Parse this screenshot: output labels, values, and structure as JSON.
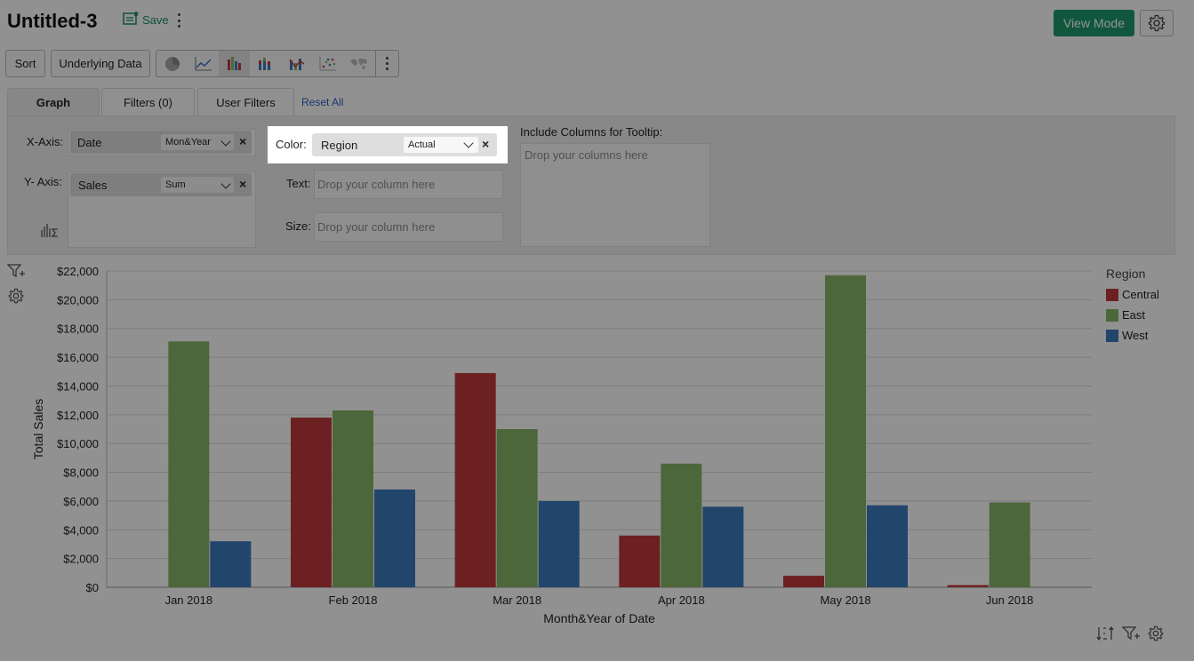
{
  "header": {
    "title": "Untitled-3",
    "save_label": "Save",
    "view_mode_label": "View Mode"
  },
  "toolbar": {
    "sort_label": "Sort",
    "underlying_data_label": "Underlying Data",
    "chart_types": [
      "pie-chart-icon",
      "line-chart-icon",
      "bar-chart-icon",
      "stacked-bar-chart-icon",
      "bar-line-combo-icon",
      "scatter-chart-icon",
      "map-chart-icon"
    ],
    "selected_chart_type": "bar-chart-icon"
  },
  "tabs": [
    {
      "label": "Graph",
      "active": true
    },
    {
      "label": "Filters (0)",
      "active": false
    },
    {
      "label": "User Filters",
      "active": false
    }
  ],
  "reset_all_label": "Reset All",
  "config": {
    "x_axis": {
      "label": "X-Axis:",
      "column": "Date",
      "aggregation": "Mon&Year"
    },
    "y_axis": {
      "label": "Y- Axis:",
      "column": "Sales",
      "aggregation": "Sum"
    },
    "color": {
      "label": "Color:",
      "column": "Region",
      "aggregation": "Actual"
    },
    "text": {
      "label": "Text:",
      "placeholder": "Drop your column here"
    },
    "size": {
      "label": "Size:",
      "placeholder": "Drop your column here"
    },
    "tooltip": {
      "label": "Include Columns for Tooltip:",
      "placeholder": "Drop your columns here"
    }
  },
  "chart_data": {
    "type": "bar",
    "categories": [
      "Jan 2018",
      "Feb 2018",
      "Mar 2018",
      "Apr 2018",
      "May 2018",
      "Jun 2018"
    ],
    "series": [
      {
        "name": "Central",
        "color": "#c0393a",
        "values": [
          0,
          11800,
          14900,
          3600,
          800,
          150
        ]
      },
      {
        "name": "East",
        "color": "#87b567",
        "values": [
          17100,
          12300,
          11000,
          8600,
          21700,
          5900
        ]
      },
      {
        "name": "West",
        "color": "#3d79bf",
        "values": [
          3200,
          6800,
          6000,
          5600,
          5700,
          0
        ]
      }
    ],
    "xlabel": "Month&Year of Date",
    "ylabel": "Total Sales",
    "ylim": [
      0,
      22000
    ],
    "yticks": [
      "$0",
      "$2,000",
      "$4,000",
      "$6,000",
      "$8,000",
      "$10,000",
      "$12,000",
      "$14,000",
      "$16,000",
      "$18,000",
      "$20,000",
      "$22,000"
    ],
    "legend_title": "Region",
    "legend_position": "right",
    "grid": true
  }
}
